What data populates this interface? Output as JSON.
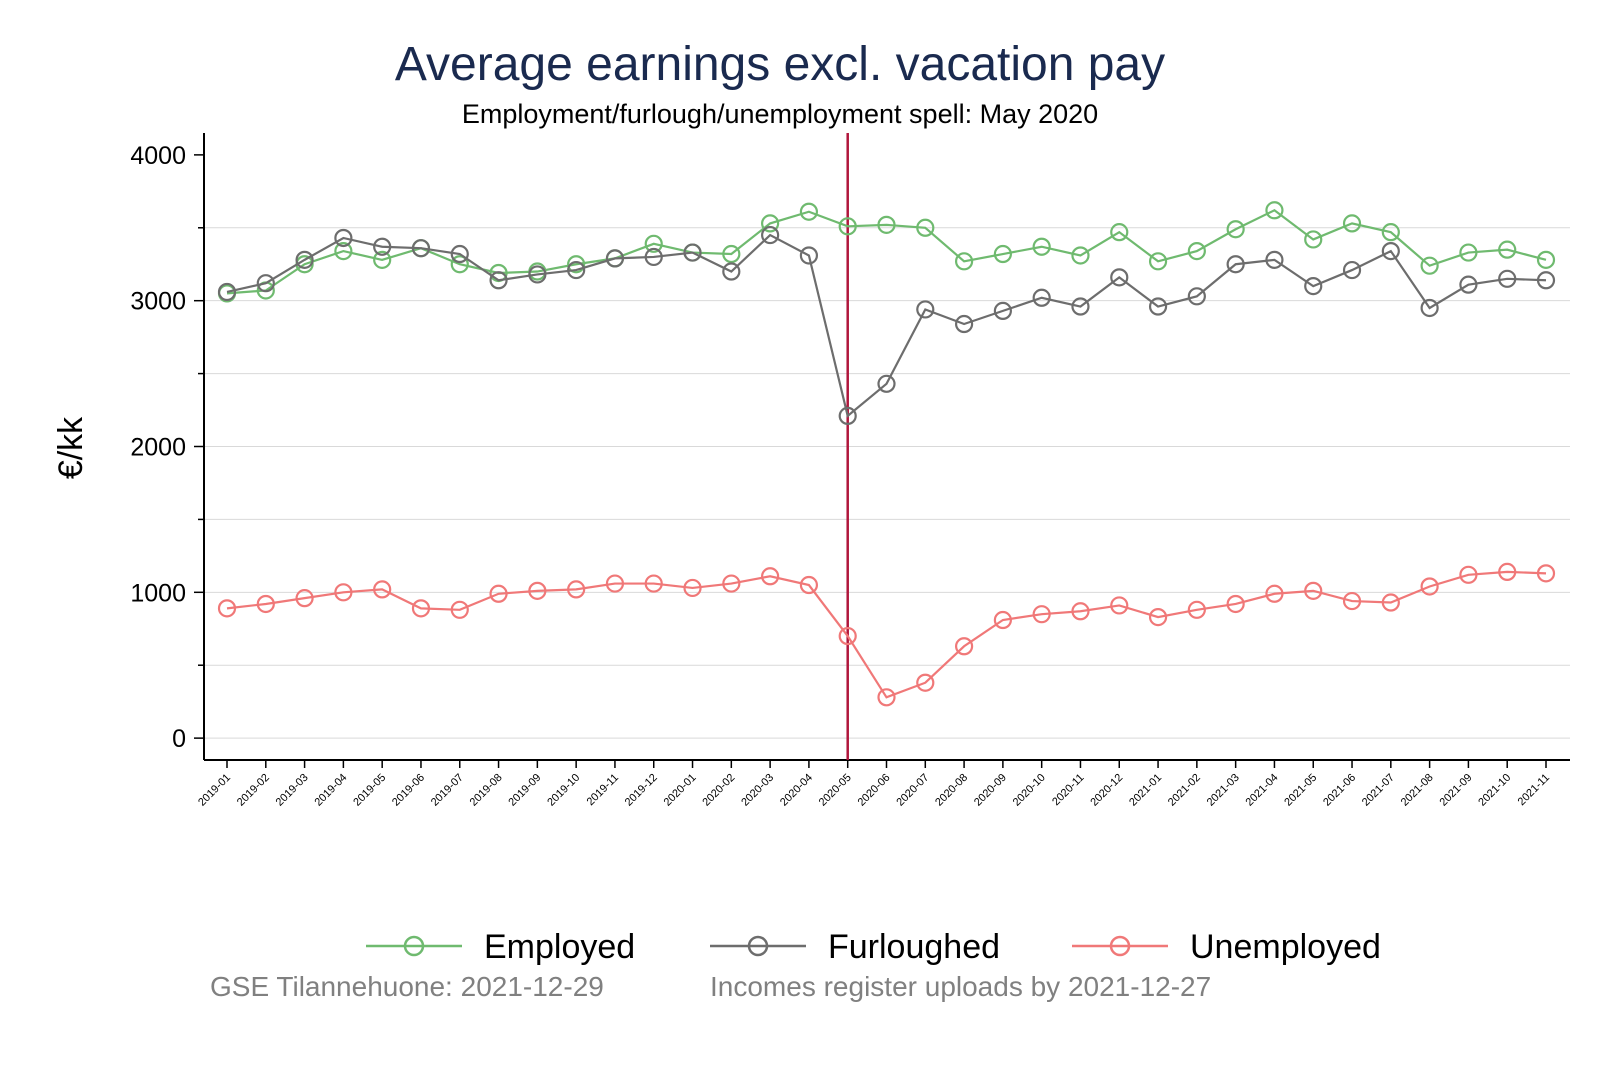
{
  "chart_data": {
    "type": "line",
    "title": "Average earnings excl. vacation pay",
    "subtitle": "Employment/furlough/unemployment spell: May 2020",
    "ylabel": "€/kk",
    "xlabel": "",
    "ylim": [
      -150,
      4150
    ],
    "yticks": [
      0,
      1000,
      2000,
      3000,
      4000
    ],
    "grid": true,
    "legend_position": "bottom",
    "reference_line": {
      "x": "2020-05",
      "color": "#b0163c"
    },
    "categories": [
      "2019-01",
      "2019-02",
      "2019-03",
      "2019-04",
      "2019-05",
      "2019-06",
      "2019-07",
      "2019-08",
      "2019-09",
      "2019-10",
      "2019-11",
      "2019-12",
      "2020-01",
      "2020-02",
      "2020-03",
      "2020-04",
      "2020-05",
      "2020-06",
      "2020-07",
      "2020-08",
      "2020-09",
      "2020-10",
      "2020-11",
      "2020-12",
      "2021-01",
      "2021-02",
      "2021-03",
      "2021-04",
      "2021-05",
      "2021-06",
      "2021-07",
      "2021-08",
      "2021-09",
      "2021-10",
      "2021-11"
    ],
    "series": [
      {
        "name": "Employed",
        "color": "#6fba6f",
        "values": [
          3050,
          3070,
          3250,
          3340,
          3280,
          3360,
          3250,
          3190,
          3200,
          3250,
          3290,
          3390,
          3330,
          3320,
          3530,
          3610,
          3510,
          3520,
          3500,
          3270,
          3320,
          3370,
          3310,
          3470,
          3270,
          3340,
          3490,
          3620,
          3420,
          3530,
          3470,
          3240,
          3330,
          3350,
          3280
        ]
      },
      {
        "name": "Furloughed",
        "color": "#6d6d6d",
        "values": [
          3060,
          3120,
          3280,
          3430,
          3370,
          3360,
          3320,
          3140,
          3180,
          3210,
          3290,
          3300,
          3330,
          3200,
          3450,
          3310,
          2210,
          2430,
          2940,
          2840,
          2930,
          3020,
          2960,
          3160,
          2960,
          3030,
          3250,
          3280,
          3100,
          3210,
          3340,
          2950,
          3110,
          3150,
          3140
        ]
      },
      {
        "name": "Unemployed",
        "color": "#f07878",
        "values": [
          890,
          920,
          960,
          1000,
          1020,
          890,
          880,
          990,
          1010,
          1020,
          1060,
          1060,
          1030,
          1060,
          1110,
          1050,
          700,
          280,
          380,
          630,
          810,
          850,
          870,
          910,
          830,
          880,
          920,
          990,
          1010,
          940,
          930,
          1040,
          1120,
          1140,
          1130
        ]
      }
    ]
  },
  "footer": {
    "left_note": "GSE Tilannehuone: 2021-12-29",
    "right_note": "Incomes register uploads by 2021-12-27"
  }
}
